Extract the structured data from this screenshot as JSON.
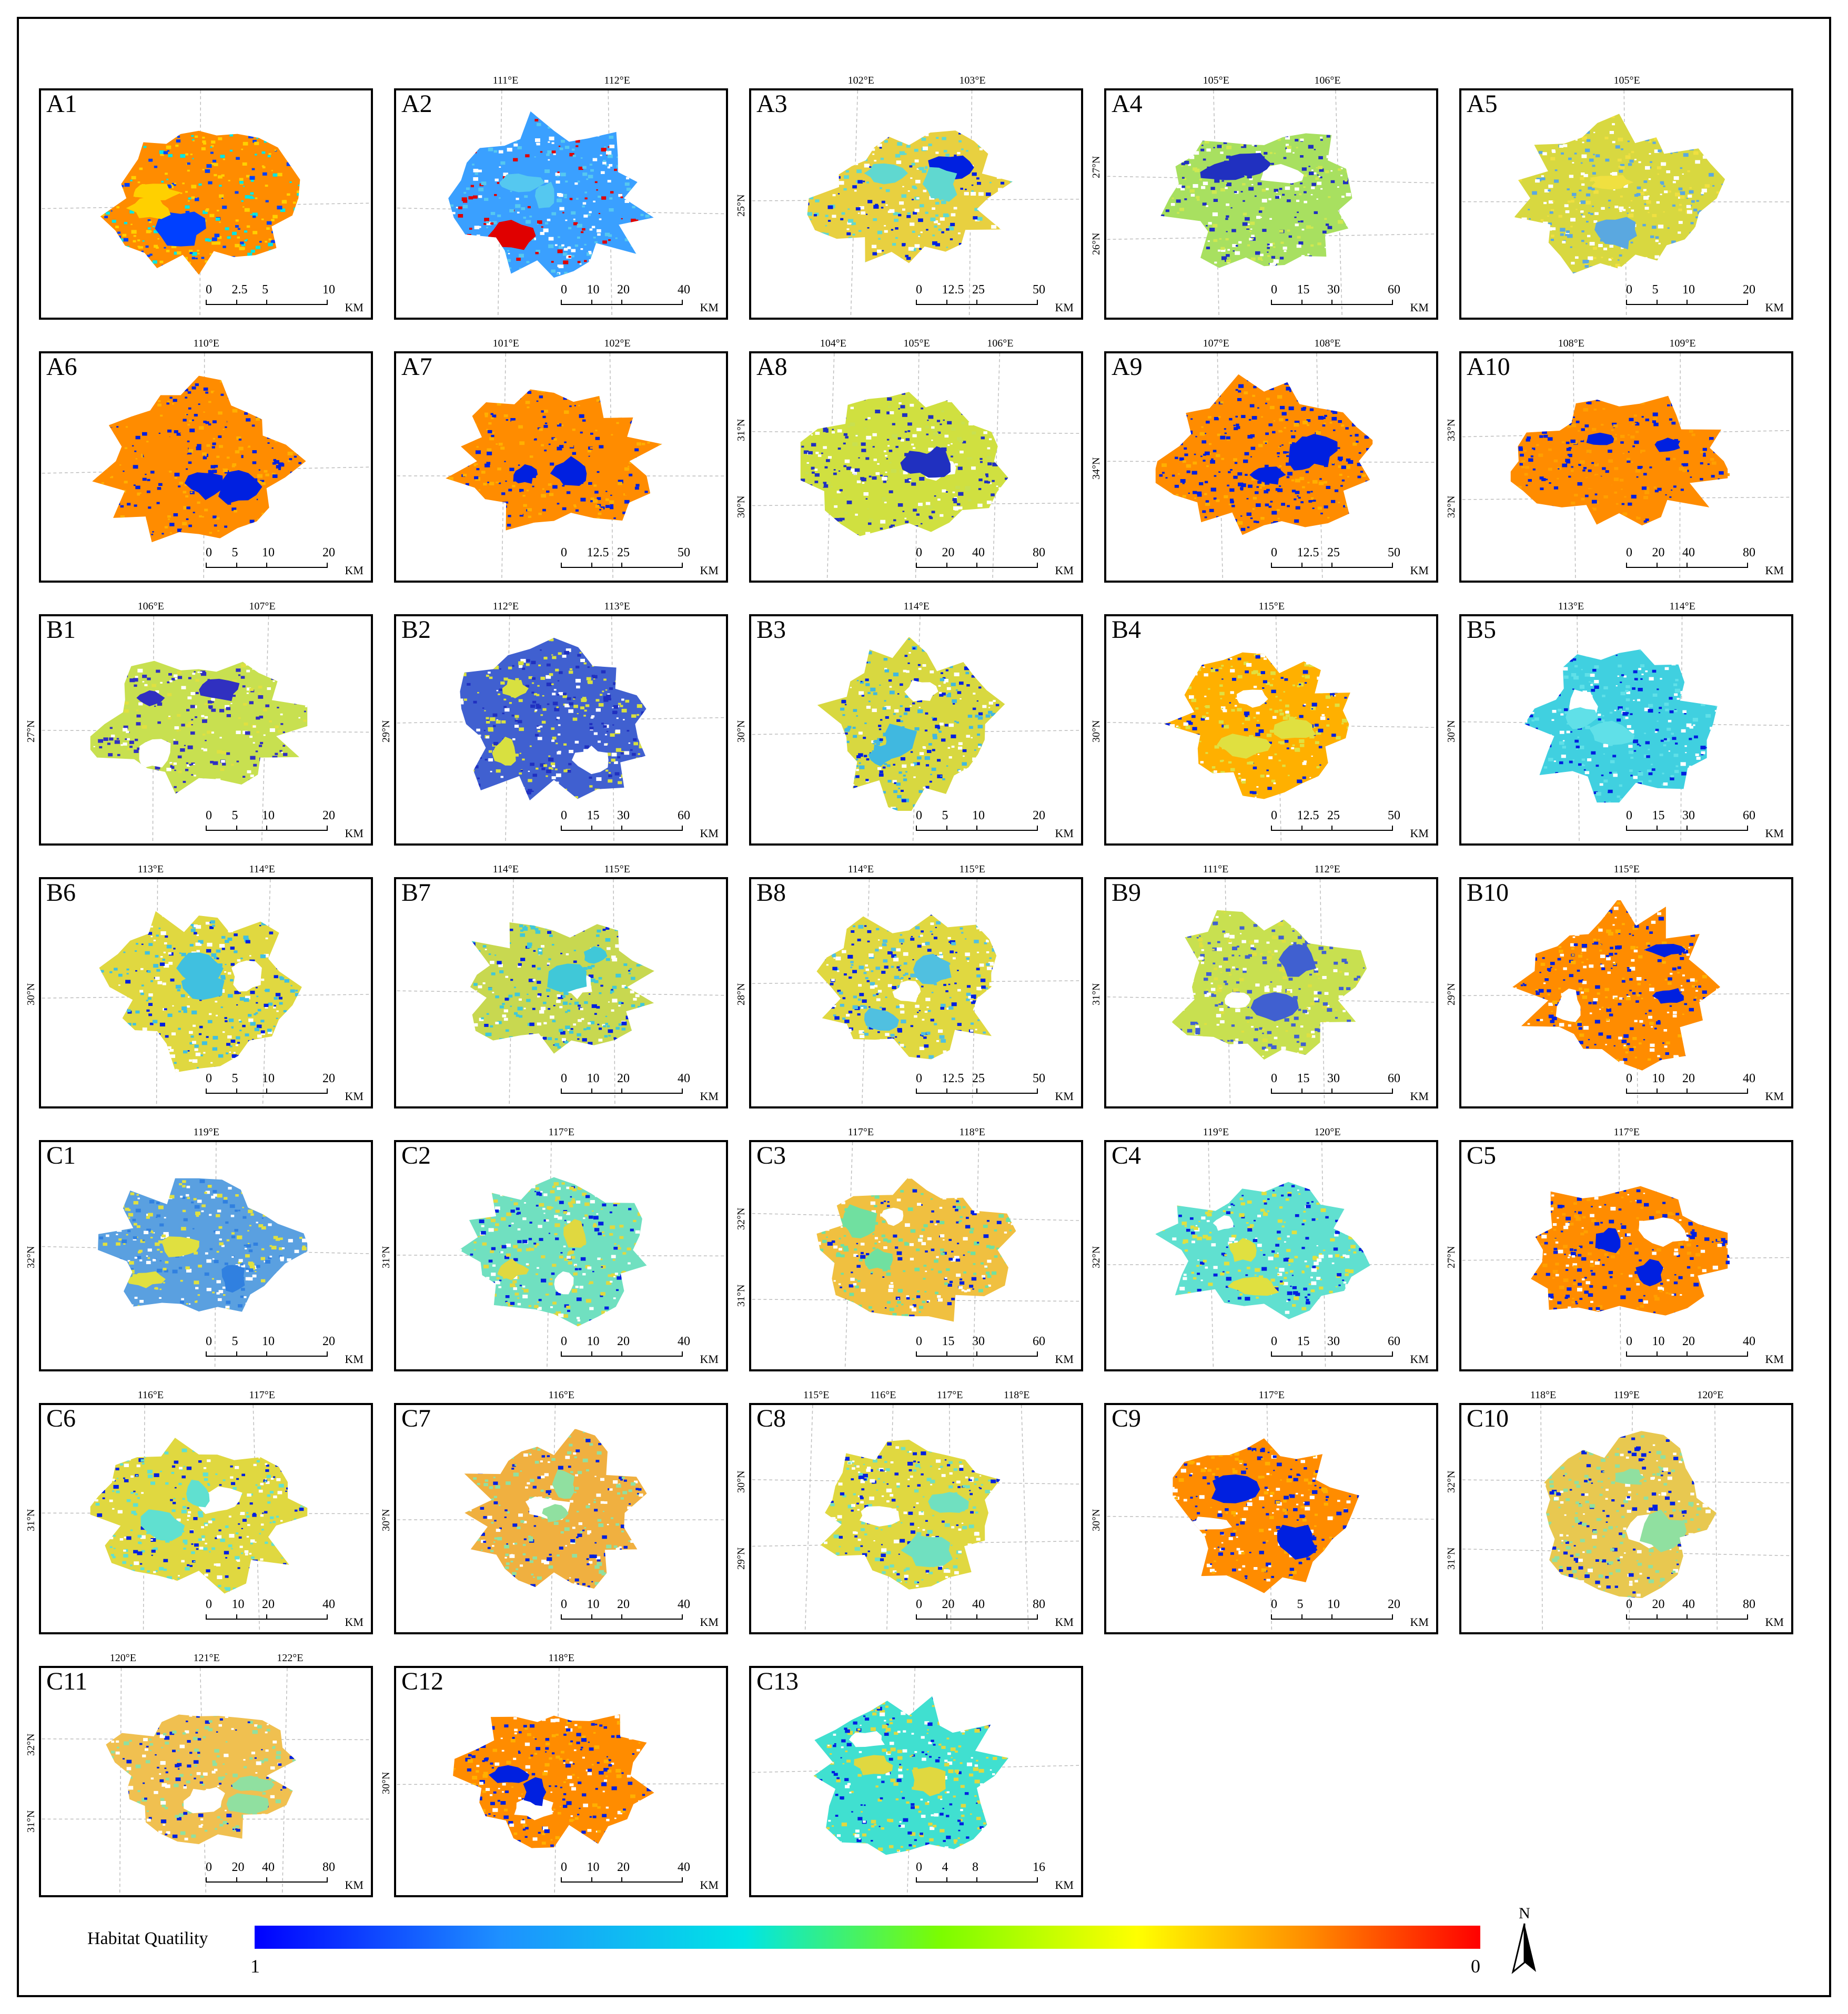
{
  "legend": {
    "label": "Habitat Quatility",
    "min_label": "1",
    "max_label": "0",
    "color_low": "#0000ff",
    "color_high": "#ff0000"
  },
  "north_arrow": {
    "label": "N"
  },
  "panels": [
    {
      "id": "A1",
      "scale": [
        "0",
        "2.5",
        "5",
        "10"
      ],
      "unit": "KM",
      "coords_top": [],
      "coords_left": [],
      "palette": [
        "#ff8c00",
        "#ffd000",
        "#00e5e5",
        "#0040ff"
      ]
    },
    {
      "id": "A2",
      "scale": [
        "0",
        "10",
        "20",
        "40"
      ],
      "unit": "KM",
      "coords_top": [
        "111°E",
        "112°E"
      ],
      "coords_left": [],
      "palette": [
        "#3aa0ff",
        "#55c8f0",
        "#ffffff",
        "#e00000"
      ]
    },
    {
      "id": "A3",
      "scale": [
        "0",
        "12.5",
        "25",
        "50"
      ],
      "unit": "KM",
      "coords_top": [
        "102°E",
        "103°E"
      ],
      "coords_left": [
        "25°N"
      ],
      "palette": [
        "#e8d040",
        "#60d8d0",
        "#ffffff",
        "#0020e0"
      ]
    },
    {
      "id": "A4",
      "scale": [
        "0",
        "15",
        "30",
        "60"
      ],
      "unit": "KM",
      "coords_top": [
        "105°E",
        "106°E"
      ],
      "coords_left": [
        "27°N",
        "26°N"
      ],
      "palette": [
        "#a8e060",
        "#2030c0",
        "#d0e850",
        "#ffffff"
      ]
    },
    {
      "id": "A5",
      "scale": [
        "0",
        "5",
        "10",
        "20"
      ],
      "unit": "KM",
      "coords_top": [
        "105°E"
      ],
      "coords_left": [],
      "palette": [
        "#d8d840",
        "#5aa8e0",
        "#ffffff",
        "#f0e040"
      ]
    },
    {
      "id": "A6",
      "scale": [
        "0",
        "5",
        "10",
        "20"
      ],
      "unit": "KM",
      "coords_top": [
        "110°E"
      ],
      "coords_left": [],
      "palette": [
        "#ff8c00",
        "#0020e0",
        "#ffb000",
        "#ff8c00"
      ]
    },
    {
      "id": "A7",
      "scale": [
        "0",
        "12.5",
        "25",
        "50"
      ],
      "unit": "KM",
      "coords_top": [
        "101°E",
        "102°E"
      ],
      "coords_left": [],
      "palette": [
        "#ff8c00",
        "#0020e0",
        "#ffb000",
        "#ff8c00"
      ]
    },
    {
      "id": "A8",
      "scale": [
        "0",
        "20",
        "40",
        "80"
      ],
      "unit": "KM",
      "coords_top": [
        "104°E",
        "105°E",
        "106°E"
      ],
      "coords_left": [
        "31°N",
        "30°N"
      ],
      "palette": [
        "#d0e040",
        "#2030c0",
        "#c8e050",
        "#ffffff"
      ]
    },
    {
      "id": "A9",
      "scale": [
        "0",
        "12.5",
        "25",
        "50"
      ],
      "unit": "KM",
      "coords_top": [
        "107°E",
        "108°E"
      ],
      "coords_left": [
        "34°N"
      ],
      "palette": [
        "#ff8c00",
        "#0020e0",
        "#ffb000",
        "#0020e0"
      ]
    },
    {
      "id": "A10",
      "scale": [
        "0",
        "20",
        "40",
        "80"
      ],
      "unit": "KM",
      "coords_top": [
        "108°E",
        "109°E"
      ],
      "coords_left": [
        "33°N",
        "32°N"
      ],
      "palette": [
        "#ff8c00",
        "#0020e0",
        "#ffa000",
        "#ff8c00"
      ]
    },
    {
      "id": "B1",
      "scale": [
        "0",
        "5",
        "10",
        "20"
      ],
      "unit": "KM",
      "coords_top": [
        "106°E",
        "107°E"
      ],
      "coords_left": [
        "27°N"
      ],
      "palette": [
        "#c8e050",
        "#3030c0",
        "#e0e040",
        "#ffffff"
      ]
    },
    {
      "id": "B2",
      "scale": [
        "0",
        "15",
        "30",
        "60"
      ],
      "unit": "KM",
      "coords_top": [
        "112°E",
        "113°E"
      ],
      "coords_left": [
        "29°N"
      ],
      "palette": [
        "#4060d0",
        "#d8e040",
        "#2030c0",
        "#ffffff"
      ]
    },
    {
      "id": "B3",
      "scale": [
        "0",
        "5",
        "10",
        "20"
      ],
      "unit": "KM",
      "coords_top": [
        "114°E"
      ],
      "coords_left": [
        "30°N"
      ],
      "palette": [
        "#d8d840",
        "#40b8e0",
        "#0020e0",
        "#ffffff"
      ]
    },
    {
      "id": "B4",
      "scale": [
        "0",
        "12.5",
        "25",
        "50"
      ],
      "unit": "KM",
      "coords_top": [
        "115°E"
      ],
      "coords_left": [
        "30°N"
      ],
      "palette": [
        "#ffb000",
        "#e0e040",
        "#0020e0",
        "#ffffff"
      ]
    },
    {
      "id": "B5",
      "scale": [
        "0",
        "15",
        "30",
        "60"
      ],
      "unit": "KM",
      "coords_top": [
        "113°E",
        "114°E"
      ],
      "coords_left": [
        "30°N"
      ],
      "palette": [
        "#40d0e0",
        "#60e0e8",
        "#0020e0",
        "#ffffff"
      ]
    },
    {
      "id": "B6",
      "scale": [
        "0",
        "5",
        "10",
        "20"
      ],
      "unit": "KM",
      "coords_top": [
        "113°E",
        "114°E"
      ],
      "coords_left": [
        "30°N"
      ],
      "palette": [
        "#e0d840",
        "#40c0e0",
        "#0020e0",
        "#ffffff"
      ]
    },
    {
      "id": "B7",
      "scale": [
        "0",
        "10",
        "20",
        "40"
      ],
      "unit": "KM",
      "coords_top": [
        "114°E",
        "115°E"
      ],
      "coords_left": [],
      "palette": [
        "#c8d850",
        "#40c8d8",
        "#0020e0",
        "#ffffff"
      ]
    },
    {
      "id": "B8",
      "scale": [
        "0",
        "12.5",
        "25",
        "50"
      ],
      "unit": "KM",
      "coords_top": [
        "114°E",
        "115°E"
      ],
      "coords_left": [
        "28°N"
      ],
      "palette": [
        "#e0d840",
        "#50c0e0",
        "#0020e0",
        "#ffffff"
      ]
    },
    {
      "id": "B9",
      "scale": [
        "0",
        "15",
        "30",
        "60"
      ],
      "unit": "KM",
      "coords_top": [
        "111°E",
        "112°E"
      ],
      "coords_left": [
        "31°N"
      ],
      "palette": [
        "#c8e050",
        "#4060d0",
        "#e0e040",
        "#ffffff"
      ]
    },
    {
      "id": "B10",
      "scale": [
        "0",
        "10",
        "20",
        "40"
      ],
      "unit": "KM",
      "coords_top": [
        "115°E"
      ],
      "coords_left": [
        "29°N"
      ],
      "palette": [
        "#ff8c00",
        "#0020e0",
        "#ffb000",
        "#ffffff"
      ]
    },
    {
      "id": "C1",
      "scale": [
        "0",
        "5",
        "10",
        "20"
      ],
      "unit": "KM",
      "coords_top": [
        "119°E"
      ],
      "coords_left": [
        "32°N"
      ],
      "palette": [
        "#5aa0e0",
        "#e0e040",
        "#ffffff",
        "#3080e0"
      ]
    },
    {
      "id": "C2",
      "scale": [
        "0",
        "10",
        "20",
        "40"
      ],
      "unit": "KM",
      "coords_top": [
        "117°E"
      ],
      "coords_left": [
        "31°N"
      ],
      "palette": [
        "#70e0c0",
        "#e0d840",
        "#0020e0",
        "#ffffff"
      ]
    },
    {
      "id": "C3",
      "scale": [
        "0",
        "15",
        "30",
        "60"
      ],
      "unit": "KM",
      "coords_top": [
        "117°E",
        "118°E"
      ],
      "coords_left": [
        "32°N",
        "31°N"
      ],
      "palette": [
        "#f0c040",
        "#70e0a0",
        "#0020e0",
        "#ffffff"
      ]
    },
    {
      "id": "C4",
      "scale": [
        "0",
        "15",
        "30",
        "60"
      ],
      "unit": "KM",
      "coords_top": [
        "119°E",
        "120°E"
      ],
      "coords_left": [
        "32°N"
      ],
      "palette": [
        "#60e0d0",
        "#e0e040",
        "#0020e0",
        "#ffffff"
      ]
    },
    {
      "id": "C5",
      "scale": [
        "0",
        "10",
        "20",
        "40"
      ],
      "unit": "KM",
      "coords_top": [
        "117°E"
      ],
      "coords_left": [
        "27°N"
      ],
      "palette": [
        "#ff8c00",
        "#0020e0",
        "#ffa000",
        "#ffffff"
      ]
    },
    {
      "id": "C6",
      "scale": [
        "0",
        "10",
        "20",
        "40"
      ],
      "unit": "KM",
      "coords_top": [
        "116°E",
        "117°E"
      ],
      "coords_left": [
        "31°N"
      ],
      "palette": [
        "#e0d840",
        "#60e0d0",
        "#0020e0",
        "#ffffff"
      ]
    },
    {
      "id": "C7",
      "scale": [
        "0",
        "10",
        "20",
        "40"
      ],
      "unit": "KM",
      "coords_top": [
        "116°E"
      ],
      "coords_left": [
        "30°N"
      ],
      "palette": [
        "#f0b040",
        "#90e0a0",
        "#0020e0",
        "#ffffff"
      ]
    },
    {
      "id": "C8",
      "scale": [
        "0",
        "20",
        "40",
        "80"
      ],
      "unit": "KM",
      "coords_top": [
        "115°E",
        "116°E",
        "117°E",
        "118°E"
      ],
      "coords_left": [
        "30°N",
        "29°N"
      ],
      "palette": [
        "#e0d840",
        "#70e0c0",
        "#0020e0",
        "#ffffff"
      ]
    },
    {
      "id": "C9",
      "scale": [
        "0",
        "5",
        "10",
        "20"
      ],
      "unit": "KM",
      "coords_top": [
        "117°E"
      ],
      "coords_left": [
        "30°N"
      ],
      "palette": [
        "#ff8c00",
        "#0020e0",
        "#ffb000",
        "#ffffff"
      ]
    },
    {
      "id": "C10",
      "scale": [
        "0",
        "20",
        "40",
        "80"
      ],
      "unit": "KM",
      "coords_top": [
        "118°E",
        "119°E",
        "120°E"
      ],
      "coords_left": [
        "32°N",
        "31°N"
      ],
      "palette": [
        "#e8c850",
        "#90e0a0",
        "#0020e0",
        "#ffffff"
      ]
    },
    {
      "id": "C11",
      "scale": [
        "0",
        "20",
        "40",
        "80"
      ],
      "unit": "KM",
      "coords_top": [
        "120°E",
        "121°E",
        "122°E"
      ],
      "coords_left": [
        "32°N",
        "31°N"
      ],
      "palette": [
        "#f0c050",
        "#90e0a0",
        "#0020e0",
        "#ffffff"
      ]
    },
    {
      "id": "C12",
      "scale": [
        "0",
        "10",
        "20",
        "40"
      ],
      "unit": "KM",
      "coords_top": [
        "118°E"
      ],
      "coords_left": [
        "30°N"
      ],
      "palette": [
        "#ff8c00",
        "#0020e0",
        "#ffb000",
        "#ffffff"
      ]
    },
    {
      "id": "C13",
      "scale": [
        "0",
        "4",
        "8",
        "16"
      ],
      "unit": "KM",
      "coords_top": [],
      "coords_left": [],
      "palette": [
        "#40e0d0",
        "#e0d840",
        "#0020e0",
        "#ffffff"
      ]
    }
  ]
}
